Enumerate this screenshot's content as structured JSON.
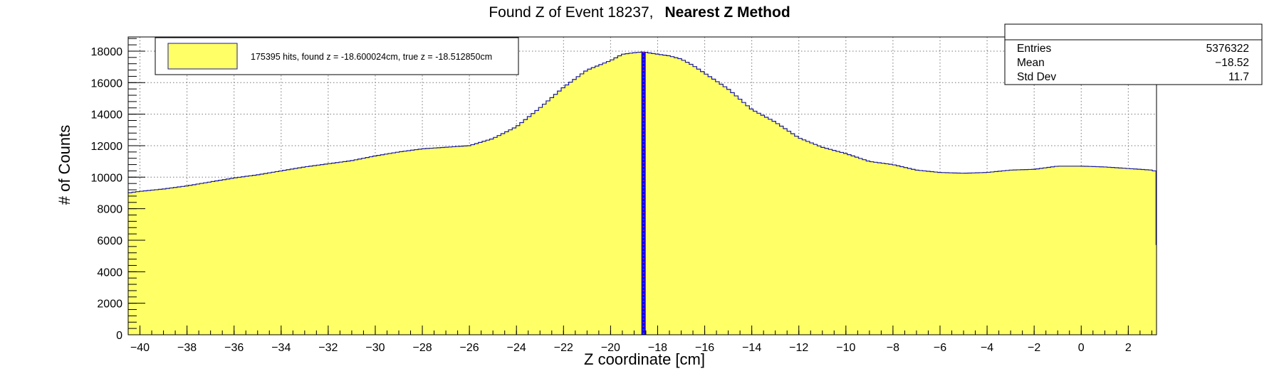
{
  "chart_data": {
    "type": "area",
    "title": "Found Z of Event 18237,",
    "title_bold": "Nearest Z Method",
    "xlabel": "Z coordinate [cm]",
    "ylabel": "# of Counts",
    "xlim": [
      -40.5,
      3.2
    ],
    "ylim": [
      0,
      18900
    ],
    "x_ticks": [
      -40,
      -38,
      -36,
      -34,
      -32,
      -30,
      -28,
      -26,
      -24,
      -22,
      -20,
      -18,
      -16,
      -14,
      -12,
      -10,
      -8,
      -6,
      -4,
      -2,
      0,
      2
    ],
    "y_ticks": [
      0,
      2000,
      4000,
      6000,
      8000,
      10000,
      12000,
      14000,
      16000,
      18000
    ],
    "grid": true,
    "fill_color": "#ffff66",
    "line_color": "#1a1a9c",
    "marker_line": {
      "found_z": -18.600024,
      "true_z": -18.51285,
      "colors": [
        "#0000ff",
        "#ff0000"
      ]
    },
    "legend": {
      "placement": "top-left",
      "text": "175395 hits, found z = -18.600024cm, true z = -18.512850cm"
    },
    "stats": {
      "placement": "top-right",
      "rows": [
        {
          "label": "Entries",
          "value": "5376322"
        },
        {
          "label": "Mean",
          "value": "−18.52"
        },
        {
          "label": "Std Dev",
          "value": "11.7"
        }
      ]
    },
    "series": [
      {
        "x": [
          -40.5,
          -40.0,
          -39.0,
          -38.0,
          -37.0,
          -36.0,
          -35.0,
          -34.0,
          -33.0,
          -32.0,
          -31.0,
          -30.0,
          -29.0,
          -28.0,
          -27.0,
          -26.0,
          -25.0,
          -24.0,
          -23.0,
          -22.0,
          -21.0,
          -20.0,
          -19.5,
          -19.0,
          -18.6,
          -18.2,
          -17.5,
          -17.0,
          -16.5,
          -16.0,
          -15.0,
          -14.0,
          -13.0,
          -12.0,
          -11.0,
          -10.0,
          -9.0,
          -8.0,
          -7.0,
          -6.0,
          -5.0,
          -4.0,
          -3.0,
          -2.0,
          -1.0,
          0.0,
          1.0,
          2.0,
          3.0,
          3.1,
          3.2
        ],
        "y": [
          9000,
          9100,
          9250,
          9450,
          9700,
          9950,
          10150,
          10400,
          10650,
          10850,
          11050,
          11350,
          11600,
          11800,
          11900,
          12000,
          12450,
          13200,
          14400,
          15700,
          16800,
          17400,
          17800,
          17900,
          17950,
          17850,
          17700,
          17500,
          17100,
          16600,
          15600,
          14300,
          13500,
          12500,
          11900,
          11500,
          11000,
          10800,
          10450,
          10300,
          10250,
          10300,
          10450,
          10500,
          10700,
          10700,
          10650,
          10550,
          10450,
          10400,
          5200
        ]
      }
    ]
  }
}
